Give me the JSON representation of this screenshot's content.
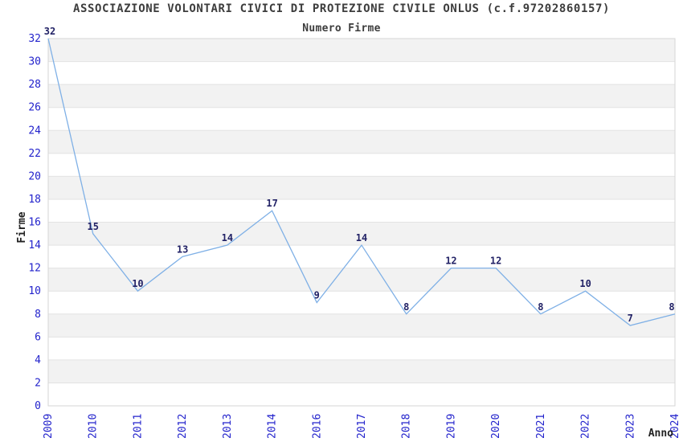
{
  "chart_data": {
    "type": "line",
    "title": "ASSOCIAZIONE VOLONTARI CIVICI DI PROTEZIONE CIVILE ONLUS (c.f.97202860157)",
    "subtitle": "Numero Firme",
    "xlabel": "Anno",
    "ylabel": "Firme",
    "categories": [
      "2009",
      "2010",
      "2011",
      "2012",
      "2013",
      "2014",
      "2016",
      "2017",
      "2018",
      "2019",
      "2020",
      "2021",
      "2022",
      "2023",
      "2024"
    ],
    "values": [
      32,
      15,
      10,
      13,
      14,
      17,
      9,
      14,
      8,
      12,
      12,
      8,
      10,
      7,
      8
    ],
    "ylim": [
      0,
      32
    ],
    "ytick_step": 2,
    "yticks": [
      0,
      2,
      4,
      6,
      8,
      10,
      12,
      14,
      16,
      18,
      20,
      22,
      24,
      26,
      28,
      30,
      32
    ],
    "grid": "horizontal lines with alternating shaded bands",
    "legend_position": "none",
    "point_labels_shown": true,
    "markers": "none",
    "colors": {
      "series_line": "#7fb0e6",
      "tick_label": "#2323cc",
      "point_label": "#222266",
      "band_fill": "#f2f2f2",
      "plot_border": "#d6d6d6",
      "grid_line": "#e3e3e3",
      "title_text": "#3d3d3d",
      "axis_title_text": "#222222",
      "background": "#ffffff"
    }
  }
}
